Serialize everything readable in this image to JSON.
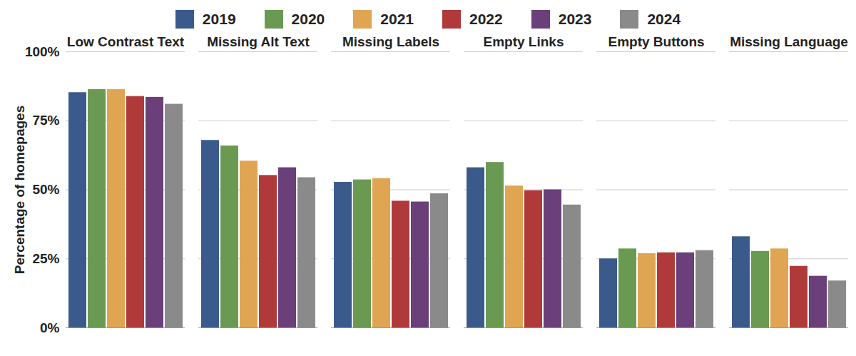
{
  "chart_data": {
    "type": "bar",
    "y_label": "Percentage of homepages",
    "categories": [
      "Low Contrast Text",
      "Missing Alt Text",
      "Missing Labels",
      "Empty Links",
      "Empty Buttons",
      "Missing Language"
    ],
    "series": [
      {
        "name": "2019",
        "color": "#3a5a8c",
        "values": [
          85.2,
          67.9,
          52.7,
          58.0,
          25.0,
          33.0
        ]
      },
      {
        "name": "2020",
        "color": "#6a9a52",
        "values": [
          86.3,
          65.9,
          53.6,
          59.9,
          28.6,
          27.7
        ]
      },
      {
        "name": "2021",
        "color": "#e0a552",
        "values": [
          86.3,
          60.4,
          54.1,
          51.4,
          26.9,
          28.6
        ]
      },
      {
        "name": "2022",
        "color": "#b03a3a",
        "values": [
          83.8,
          55.2,
          45.9,
          49.7,
          27.2,
          22.3
        ]
      },
      {
        "name": "2023",
        "color": "#6a3f7a",
        "values": [
          83.5,
          58.0,
          45.6,
          50.0,
          27.2,
          18.7
        ]
      },
      {
        "name": "2024",
        "color": "#8a8a8a",
        "values": [
          81.0,
          54.4,
          48.6,
          44.5,
          28.0,
          17.0
        ]
      }
    ],
    "ylim": [
      0,
      100
    ],
    "yticks": [
      {
        "value": 0,
        "label": "0%"
      },
      {
        "value": 25,
        "label": "25%"
      },
      {
        "value": 50,
        "label": "50%"
      },
      {
        "value": 75,
        "label": "75%"
      },
      {
        "value": 100,
        "label": "100%"
      }
    ],
    "grid": true,
    "legend": "top"
  }
}
